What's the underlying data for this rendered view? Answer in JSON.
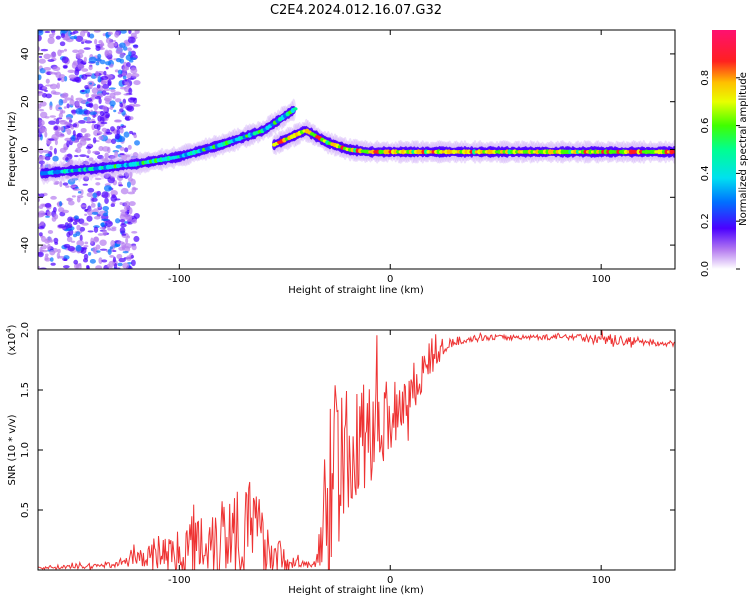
{
  "title": "C2E4.2024.012.16.07.G32",
  "colors": {
    "snr_line": "#ee3333",
    "axis": "#000000"
  },
  "chart_data": [
    {
      "type": "heatmap",
      "xlabel": "Height of straight line (km)",
      "ylabel": "Frequency (Hz)",
      "xlim": [
        -167,
        135
      ],
      "ylim": [
        -50,
        50
      ],
      "x_ticks": [
        -100,
        0,
        100
      ],
      "x_tick_labels": [
        "-100",
        "0",
        "100"
      ],
      "y_ticks": [
        -40,
        -20,
        0,
        20,
        40
      ],
      "y_tick_labels": [
        "-40",
        "-20",
        "0",
        "20",
        "40"
      ],
      "colorbar": {
        "label": "Normalized spectral amplitude",
        "range": [
          0,
          1
        ],
        "ticks": [
          0.0,
          0.2,
          0.4,
          0.6,
          0.8
        ],
        "tick_labels": [
          "0.0",
          "0.2",
          "0.4",
          "0.6",
          "0.8"
        ]
      },
      "ridges": [
        {
          "x": [
            -165,
            -140,
            -120,
            -100,
            -80,
            -60,
            -45
          ],
          "f": [
            -10,
            -8,
            -6,
            -3,
            2,
            8,
            17
          ],
          "amplitude": 0.35
        },
        {
          "x": [
            -55,
            -40,
            -30,
            -20,
            -10,
            0,
            20,
            60,
            135
          ],
          "f": [
            2,
            8,
            3,
            0,
            -1,
            -1,
            -1,
            -1,
            -1
          ],
          "amplitude": 0.85
        }
      ],
      "noise_region_x": [
        -167,
        -120
      ]
    },
    {
      "type": "line",
      "xlabel": "Height of straight line (km)",
      "ylabel": "SNR (10 * v/v)",
      "y_multiplier": "(x10",
      "y_multiplier_exp": "4",
      "xlim": [
        -167,
        135
      ],
      "ylim": [
        0,
        20000
      ],
      "x_ticks": [
        -100,
        0,
        100
      ],
      "x_tick_labels": [
        "-100",
        "0",
        "100"
      ],
      "y_ticks": [
        5000,
        10000,
        15000,
        20000
      ],
      "y_tick_labels": [
        "0.5",
        "1.0",
        "1.5",
        "2.0"
      ],
      "series": [
        {
          "x": [
            -167,
            -145,
            -130,
            -115,
            -110,
            -100,
            -95,
            -90,
            -85,
            -80,
            -75,
            -70,
            -65,
            -60,
            -55,
            -50,
            -45,
            -40,
            -35,
            -32,
            -30,
            -28,
            -26,
            -24,
            -22,
            -20,
            -15,
            -10,
            -5,
            0,
            5,
            10,
            15,
            20,
            25,
            30,
            35,
            40,
            50,
            60,
            70,
            80,
            90,
            95,
            100,
            110,
            120,
            135
          ],
          "y": [
            200,
            300,
            500,
            1200,
            1500,
            1400,
            2000,
            2500,
            2800,
            3000,
            3500,
            4000,
            3600,
            2500,
            1500,
            800,
            600,
            400,
            600,
            3000,
            6000,
            8000,
            9000,
            8500,
            9000,
            9500,
            10500,
            11500,
            12500,
            13000,
            14000,
            15000,
            16500,
            17500,
            18500,
            19000,
            19200,
            19300,
            19400,
            19400,
            19400,
            19400,
            19500,
            19200,
            19300,
            19100,
            19000,
            18800
          ],
          "amplitude": [
            150,
            200,
            300,
            1000,
            1500,
            2000,
            2500,
            3200,
            3500,
            3800,
            4000,
            4500,
            3500,
            3000,
            2000,
            900,
            500,
            300,
            500,
            4000,
            8000,
            8000,
            7000,
            6500,
            6000,
            5500,
            5000,
            4500,
            4000,
            3500,
            3000,
            2500,
            1800,
            1200,
            800,
            400,
            300,
            250,
            200,
            200,
            200,
            250,
            300,
            400,
            450,
            400,
            300,
            250
          ]
        }
      ]
    }
  ]
}
